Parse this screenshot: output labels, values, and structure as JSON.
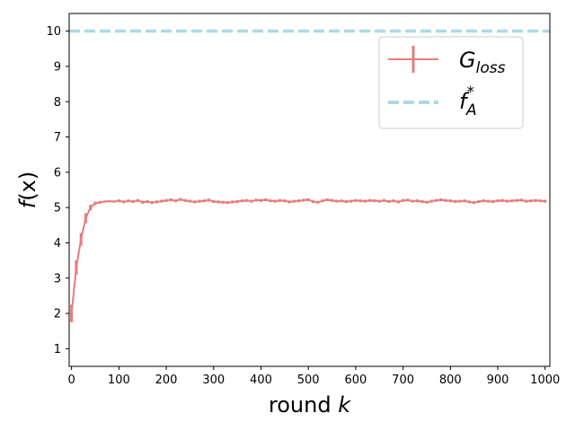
{
  "chart_data": {
    "type": "line",
    "xlabel_main": "round ",
    "xlabel_var": "k",
    "ylabel_f": "f",
    "ylabel_rest": "(x)",
    "xlim": [
      -5,
      1010
    ],
    "ylim": [
      0.5,
      10.5
    ],
    "xticks": [
      0,
      100,
      200,
      300,
      400,
      500,
      600,
      700,
      800,
      900,
      1000
    ],
    "yticks": [
      1,
      2,
      3,
      4,
      5,
      6,
      7,
      8,
      9,
      10
    ],
    "grid": false,
    "legend": "top-right",
    "series": [
      {
        "legend_main": "G",
        "legend_sub": "loss",
        "color": "#e77c7c",
        "style": "line-with-errorbars",
        "x": [
          0,
          10,
          20,
          30,
          40,
          50,
          60,
          70,
          80,
          90,
          100,
          110,
          120,
          130,
          140,
          150,
          160,
          170,
          180,
          190,
          200,
          210,
          220,
          230,
          240,
          250,
          260,
          270,
          280,
          290,
          300,
          310,
          320,
          330,
          340,
          350,
          360,
          370,
          380,
          390,
          400,
          410,
          420,
          430,
          440,
          450,
          460,
          470,
          480,
          490,
          500,
          510,
          520,
          530,
          540,
          550,
          560,
          570,
          580,
          590,
          600,
          610,
          620,
          630,
          640,
          650,
          660,
          670,
          680,
          690,
          700,
          710,
          720,
          730,
          740,
          750,
          760,
          770,
          780,
          790,
          800,
          810,
          820,
          830,
          840,
          850,
          860,
          870,
          880,
          890,
          900,
          910,
          920,
          930,
          940,
          950,
          960,
          970,
          980,
          990,
          1000
        ],
        "y": [
          2.0,
          3.3,
          4.1,
          4.7,
          5.0,
          5.12,
          5.15,
          5.17,
          5.18,
          5.17,
          5.19,
          5.16,
          5.19,
          5.17,
          5.2,
          5.15,
          5.17,
          5.14,
          5.16,
          5.18,
          5.2,
          5.22,
          5.19,
          5.23,
          5.2,
          5.18,
          5.16,
          5.18,
          5.19,
          5.21,
          5.17,
          5.16,
          5.15,
          5.14,
          5.16,
          5.17,
          5.19,
          5.2,
          5.18,
          5.21,
          5.2,
          5.22,
          5.19,
          5.18,
          5.2,
          5.19,
          5.16,
          5.18,
          5.19,
          5.21,
          5.22,
          5.17,
          5.15,
          5.19,
          5.22,
          5.2,
          5.18,
          5.19,
          5.17,
          5.18,
          5.2,
          5.19,
          5.18,
          5.2,
          5.19,
          5.18,
          5.2,
          5.17,
          5.19,
          5.16,
          5.2,
          5.21,
          5.18,
          5.19,
          5.17,
          5.15,
          5.18,
          5.2,
          5.22,
          5.2,
          5.19,
          5.17,
          5.18,
          5.19,
          5.16,
          5.14,
          5.17,
          5.19,
          5.18,
          5.17,
          5.19,
          5.2,
          5.18,
          5.19,
          5.2,
          5.21,
          5.18,
          5.19,
          5.2,
          5.19,
          5.18
        ],
        "err": [
          0.25,
          0.2,
          0.18,
          0.14,
          0.08,
          0.05,
          0.04,
          0.03,
          0.03,
          0.03,
          0.04,
          0.04,
          0.04,
          0.04,
          0.04,
          0.04,
          0.04,
          0.04,
          0.04,
          0.04,
          0.04,
          0.04,
          0.04,
          0.04,
          0.04,
          0.04,
          0.04,
          0.04,
          0.04,
          0.04,
          0.04,
          0.04,
          0.04,
          0.04,
          0.04,
          0.04,
          0.04,
          0.04,
          0.04,
          0.04,
          0.04,
          0.04,
          0.04,
          0.04,
          0.04,
          0.04,
          0.04,
          0.04,
          0.04,
          0.04,
          0.04,
          0.04,
          0.04,
          0.04,
          0.04,
          0.04,
          0.04,
          0.04,
          0.04,
          0.04,
          0.04,
          0.04,
          0.04,
          0.04,
          0.04,
          0.04,
          0.04,
          0.04,
          0.04,
          0.04,
          0.04,
          0.04,
          0.04,
          0.04,
          0.04,
          0.04,
          0.04,
          0.04,
          0.04,
          0.04,
          0.04,
          0.04,
          0.04,
          0.04,
          0.04,
          0.04,
          0.04,
          0.04,
          0.04,
          0.04,
          0.04,
          0.04,
          0.04,
          0.04,
          0.04,
          0.04,
          0.04,
          0.04,
          0.04,
          0.04,
          0.04
        ]
      },
      {
        "legend_main": "f",
        "legend_sup": "*",
        "legend_sub": "A",
        "color": "#add8e6",
        "style": "dashed",
        "value": 10
      }
    ]
  }
}
